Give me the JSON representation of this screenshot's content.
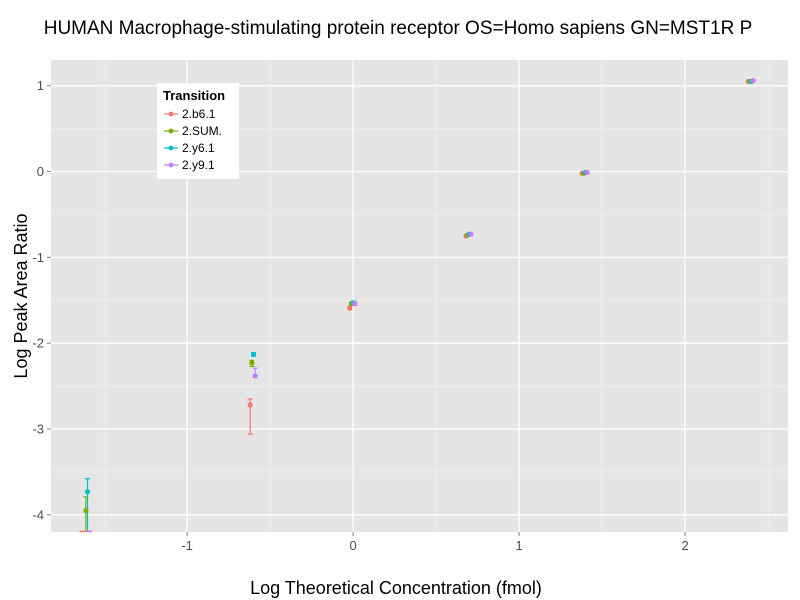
{
  "chart_data": {
    "type": "scatter",
    "title": "HUMAN Macrophage-stimulating protein receptor OS=Homo sapiens GN=MST1R P",
    "xlabel": "Log Theoretical Concentration (fmol)",
    "ylabel": "Log Peak Area Ratio",
    "xlim": [
      -1.82,
      2.62
    ],
    "ylim": [
      -4.2,
      1.3
    ],
    "x_ticks": [
      -1,
      0,
      1,
      2
    ],
    "x_tick_labels": [
      "-1",
      "0",
      "1",
      "2"
    ],
    "y_ticks": [
      -4,
      -3,
      -2,
      -1,
      0,
      1
    ],
    "y_tick_labels": [
      "-4",
      "-3",
      "-2",
      "-1",
      "0",
      "1"
    ],
    "grid": true,
    "background": "#e5e5e5",
    "legend": {
      "title": "Transition",
      "placement": "top-left"
    },
    "series": [
      {
        "name": "2.b6.1",
        "color": "#f8766d",
        "points": [
          {
            "x": -1.63,
            "y": -4.25,
            "err_low": -4.25,
            "err_high": -4.25
          },
          {
            "x": -0.62,
            "y": -2.72,
            "err_low": -3.06,
            "err_high": -2.65
          },
          {
            "x": -0.02,
            "y": -1.59,
            "err_low": -1.61,
            "err_high": -1.57
          },
          {
            "x": 0.68,
            "y": -0.75
          },
          {
            "x": 1.38,
            "y": -0.02
          },
          {
            "x": 2.38,
            "y": 1.05
          }
        ]
      },
      {
        "name": "2.SUM.",
        "color": "#7cae00",
        "points": [
          {
            "x": -1.61,
            "y": -3.95,
            "err_low": -4.25,
            "err_high": -3.79
          },
          {
            "x": -0.61,
            "y": -2.23,
            "err_low": -2.27,
            "err_high": -2.2
          },
          {
            "x": -0.01,
            "y": -1.54,
            "err_low": -1.56,
            "err_high": -1.52
          },
          {
            "x": 0.69,
            "y": -0.74
          },
          {
            "x": 1.39,
            "y": -0.02
          },
          {
            "x": 2.39,
            "y": 1.05
          }
        ]
      },
      {
        "name": "2.y6.1",
        "color": "#00bfc4",
        "points": [
          {
            "x": -1.6,
            "y": -3.73,
            "err_low": -4.25,
            "err_high": -3.58
          },
          {
            "x": -0.6,
            "y": -2.13,
            "err_low": -2.15,
            "err_high": -2.11
          },
          {
            "x": 0.0,
            "y": -1.53,
            "err_low": -1.55,
            "err_high": -1.51
          },
          {
            "x": 0.7,
            "y": -0.73
          },
          {
            "x": 1.4,
            "y": -0.01
          },
          {
            "x": 2.4,
            "y": 1.05
          }
        ]
      },
      {
        "name": "2.y9.1",
        "color": "#c77cff",
        "points": [
          {
            "x": -1.59,
            "y": -4.25,
            "err_low": -4.25,
            "err_high": -4.25
          },
          {
            "x": -0.59,
            "y": -2.38,
            "err_low": -2.4,
            "err_high": -2.29
          },
          {
            "x": 0.01,
            "y": -1.54,
            "err_low": -1.56,
            "err_high": -1.52
          },
          {
            "x": 0.71,
            "y": -0.73
          },
          {
            "x": 1.41,
            "y": -0.01
          },
          {
            "x": 2.41,
            "y": 1.06
          }
        ]
      }
    ]
  }
}
